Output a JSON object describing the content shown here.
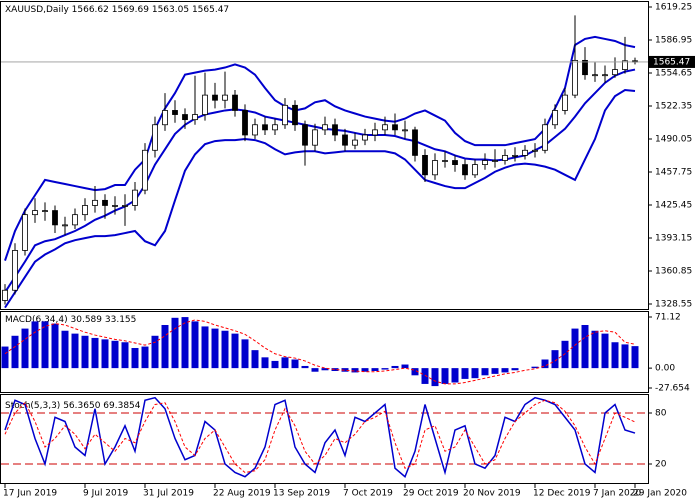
{
  "chart_data": [
    {
      "type": "candlestick",
      "title": "XAUUSD,Daily",
      "categories": [
        "17 Jun 2019",
        null,
        null,
        null,
        null,
        null,
        null,
        null,
        "9 Jul 2019",
        null,
        null,
        null,
        null,
        null,
        "31 Jul 2019",
        null,
        null,
        null,
        null,
        null,
        null,
        "22 Aug 2019",
        null,
        null,
        null,
        null,
        null,
        "13 Sep 2019",
        null,
        null,
        null,
        null,
        null,
        null,
        "7 Oct 2019",
        null,
        null,
        null,
        null,
        null,
        "29 Oct 2019",
        null,
        null,
        null,
        null,
        null,
        "20 Nov 2019",
        null,
        null,
        null,
        null,
        null,
        null,
        "12 Dec 2019",
        null,
        null,
        null,
        null,
        null,
        "7 Jan 2020",
        null,
        null,
        null,
        "29 Jan 2020"
      ],
      "ohlc": [
        [
          1332,
          1348,
          1328,
          1342
        ],
        [
          1342,
          1388,
          1338,
          1381
        ],
        [
          1381,
          1422,
          1376,
          1416
        ],
        [
          1416,
          1432,
          1408,
          1420
        ],
        [
          1420,
          1428,
          1410,
          1420
        ],
        [
          1420,
          1425,
          1398,
          1406
        ],
        [
          1406,
          1414,
          1396,
          1406
        ],
        [
          1406,
          1422,
          1402,
          1416
        ],
        [
          1416,
          1432,
          1410,
          1425
        ],
        [
          1425,
          1444,
          1418,
          1430
        ],
        [
          1430,
          1436,
          1412,
          1425
        ],
        [
          1425,
          1434,
          1416,
          1425
        ],
        [
          1425,
          1436,
          1405,
          1425
        ],
        [
          1425,
          1448,
          1420,
          1440
        ],
        [
          1440,
          1486,
          1436,
          1479
        ],
        [
          1479,
          1512,
          1472,
          1504
        ],
        [
          1504,
          1535,
          1498,
          1518
        ],
        [
          1518,
          1528,
          1506,
          1514
        ],
        [
          1514,
          1520,
          1500,
          1509
        ],
        [
          1509,
          1552,
          1504,
          1514
        ],
        [
          1514,
          1555,
          1508,
          1533
        ],
        [
          1533,
          1545,
          1520,
          1528
        ],
        [
          1528,
          1556,
          1520,
          1533
        ],
        [
          1533,
          1538,
          1512,
          1518
        ],
        [
          1518,
          1524,
          1488,
          1494
        ],
        [
          1494,
          1510,
          1490,
          1504
        ],
        [
          1504,
          1512,
          1494,
          1499
        ],
        [
          1499,
          1510,
          1494,
          1504
        ],
        [
          1504,
          1530,
          1500,
          1523
        ],
        [
          1523,
          1528,
          1498,
          1504
        ],
        [
          1504,
          1508,
          1464,
          1484
        ],
        [
          1484,
          1505,
          1478,
          1499
        ],
        [
          1499,
          1512,
          1494,
          1504
        ],
        [
          1504,
          1510,
          1488,
          1494
        ],
        [
          1494,
          1500,
          1478,
          1484
        ],
        [
          1484,
          1496,
          1480,
          1489
        ],
        [
          1489,
          1500,
          1484,
          1494
        ],
        [
          1494,
          1506,
          1488,
          1499
        ],
        [
          1499,
          1512,
          1494,
          1504
        ],
        [
          1504,
          1515,
          1494,
          1499
        ],
        [
          1499,
          1508,
          1490,
          1499
        ],
        [
          1499,
          1502,
          1468,
          1474
        ],
        [
          1474,
          1480,
          1448,
          1455
        ],
        [
          1455,
          1476,
          1450,
          1469
        ],
        [
          1469,
          1478,
          1462,
          1469
        ],
        [
          1469,
          1474,
          1458,
          1465
        ],
        [
          1465,
          1470,
          1450,
          1455
        ],
        [
          1455,
          1470,
          1452,
          1465
        ],
        [
          1465,
          1476,
          1460,
          1469
        ],
        [
          1469,
          1480,
          1462,
          1469
        ],
        [
          1469,
          1480,
          1465,
          1474
        ],
        [
          1474,
          1482,
          1468,
          1474
        ],
        [
          1474,
          1484,
          1470,
          1479
        ],
        [
          1479,
          1486,
          1472,
          1479
        ],
        [
          1479,
          1510,
          1476,
          1504
        ],
        [
          1504,
          1524,
          1500,
          1518
        ],
        [
          1518,
          1540,
          1514,
          1533
        ],
        [
          1533,
          1611,
          1530,
          1567
        ],
        [
          1567,
          1580,
          1548,
          1553
        ],
        [
          1553,
          1565,
          1546,
          1553
        ],
        [
          1553,
          1562,
          1545,
          1553
        ],
        [
          1553,
          1570,
          1550,
          1558
        ],
        [
          1558,
          1590,
          1554,
          1566.62
        ],
        [
          1566.62,
          1569.69,
          1563.05,
          1565.47
        ]
      ],
      "candle_color": "#000000",
      "series": [
        {
          "color": "#0000cd",
          "values": [
            1371,
            1400,
            1420,
            1435,
            1450,
            1448,
            1446,
            1444,
            1442,
            1440,
            1441,
            1445,
            1445,
            1460,
            1470,
            1500,
            1520,
            1535,
            1553,
            1555,
            1557,
            1558,
            1560,
            1563,
            1560,
            1553,
            1540,
            1528,
            1522,
            1518,
            1520,
            1526,
            1528,
            1522,
            1518,
            1515,
            1512,
            1510,
            1508,
            1507,
            1510,
            1515,
            1518,
            1513,
            1508,
            1496,
            1488,
            1484,
            1484,
            1484,
            1484,
            1486,
            1488,
            1490,
            1500,
            1520,
            1540,
            1582,
            1588,
            1590,
            1588,
            1586,
            1582,
            1580
          ]
        },
        {
          "color": "#0000cd",
          "values": [
            1340,
            1355,
            1370,
            1386,
            1390,
            1392,
            1396,
            1400,
            1405,
            1411,
            1415,
            1420,
            1424,
            1430,
            1445,
            1465,
            1480,
            1495,
            1504,
            1510,
            1514,
            1516,
            1518,
            1519,
            1518,
            1516,
            1512,
            1510,
            1508,
            1506,
            1504,
            1502,
            1500,
            1499,
            1498,
            1496,
            1494,
            1494,
            1494,
            1493,
            1490,
            1488,
            1484,
            1480,
            1478,
            1474,
            1471,
            1470,
            1470,
            1469,
            1470,
            1472,
            1474,
            1479,
            1484,
            1492,
            1500,
            1512,
            1525,
            1535,
            1545,
            1552,
            1556,
            1558
          ]
        },
        {
          "color": "#0000cd",
          "values": [
            1325,
            1340,
            1355,
            1370,
            1377,
            1382,
            1388,
            1391,
            1393,
            1395,
            1395,
            1396,
            1398,
            1400,
            1390,
            1386,
            1400,
            1430,
            1459,
            1475,
            1485,
            1488,
            1489,
            1489,
            1490,
            1489,
            1486,
            1480,
            1475,
            1477,
            1478,
            1478,
            1476,
            1477,
            1478,
            1478,
            1478,
            1478,
            1478,
            1476,
            1470,
            1460,
            1450,
            1447,
            1444,
            1442,
            1442,
            1447,
            1452,
            1458,
            1462,
            1465,
            1466,
            1465,
            1463,
            1460,
            1455,
            1450,
            1470,
            1490,
            1518,
            1532,
            1538,
            1537
          ]
        }
      ],
      "ylim": [
        1328.55,
        1619.25
      ],
      "yticks": [
        1619.25,
        1586.95,
        1554.65,
        1522.35,
        1490.05,
        1457.75,
        1425.45,
        1393.15,
        1360.85,
        1328.55
      ]
    },
    {
      "type": "macd",
      "title": "MACD(6,34,4)",
      "readouts": [
        "30.589",
        "33.155"
      ],
      "series": [
        {
          "type": "bar",
          "color": "#0000cd",
          "values": [
            30,
            45,
            55,
            65,
            65,
            62,
            52,
            48,
            45,
            42,
            40,
            38,
            36,
            28,
            30,
            45,
            60,
            70,
            71,
            65,
            58,
            55,
            52,
            48,
            40,
            25,
            15,
            10,
            15,
            12,
            3,
            -5,
            -3,
            -4,
            -5,
            -6,
            -5,
            -4,
            -2,
            3,
            5,
            -10,
            -22,
            -25,
            -22,
            -20,
            -15,
            -14,
            -10,
            -8,
            -6,
            -3,
            0,
            2,
            12,
            25,
            38,
            55,
            60,
            52,
            48,
            36,
            33,
            30.589
          ]
        },
        {
          "type": "line",
          "dashed": true,
          "color": "#ff0000",
          "values": [
            20,
            30,
            40,
            50,
            58,
            62,
            60,
            55,
            50,
            46,
            43,
            40,
            38,
            35,
            32,
            36,
            45,
            55,
            63,
            67,
            65,
            60,
            56,
            52,
            47,
            38,
            28,
            20,
            16,
            14,
            10,
            4,
            0,
            -2,
            -3,
            -4,
            -5,
            -5,
            -4,
            -2,
            0,
            -3,
            -10,
            -18,
            -22,
            -22,
            -20,
            -17,
            -14,
            -11,
            -8,
            -6,
            -3,
            -1,
            3,
            10,
            20,
            32,
            43,
            50,
            52,
            50,
            36,
            33.155
          ]
        }
      ],
      "ylim": [
        -27.654,
        71.12
      ],
      "yticks": [
        71.12,
        {
          "value": 0,
          "label": "0.00"
        },
        -27.654
      ]
    },
    {
      "type": "stochastic",
      "title": "Stoch(5,3,3)",
      "readouts": [
        "56.3650",
        "69.3854"
      ],
      "series": [
        {
          "type": "line",
          "color": "#0000cd",
          "values": [
            60,
            95,
            90,
            50,
            20,
            75,
            70,
            40,
            30,
            85,
            20,
            40,
            65,
            35,
            95,
            98,
            85,
            50,
            25,
            30,
            70,
            60,
            20,
            10,
            5,
            15,
            40,
            90,
            95,
            40,
            20,
            10,
            45,
            60,
            30,
            75,
            70,
            80,
            90,
            15,
            5,
            35,
            90,
            50,
            10,
            60,
            65,
            20,
            15,
            30,
            75,
            70,
            90,
            98,
            95,
            90,
            75,
            60,
            20,
            10,
            80,
            90,
            60,
            56.365
          ]
        },
        {
          "type": "line",
          "dashed": true,
          "color": "#ff0000",
          "values": [
            55,
            80,
            92,
            70,
            40,
            50,
            65,
            55,
            38,
            55,
            45,
            35,
            50,
            45,
            70,
            90,
            92,
            70,
            40,
            30,
            50,
            60,
            40,
            20,
            10,
            12,
            25,
            60,
            85,
            65,
            35,
            20,
            30,
            50,
            45,
            55,
            70,
            75,
            82,
            45,
            15,
            20,
            60,
            65,
            35,
            40,
            60,
            40,
            20,
            25,
            50,
            70,
            80,
            90,
            95,
            92,
            82,
            65,
            40,
            20,
            50,
            80,
            75,
            69.3854
          ]
        }
      ],
      "ylim": [
        0,
        100
      ],
      "yticks": [
        80,
        20
      ],
      "grid": true,
      "grid_color": "#cc0000"
    }
  ]
}
